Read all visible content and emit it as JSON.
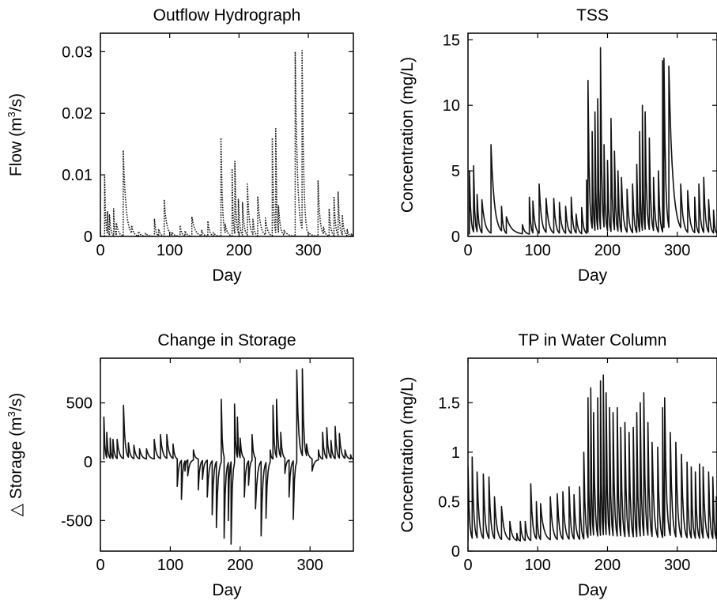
{
  "chart_data": [
    {
      "type": "line",
      "title": "Outflow Hydrograph",
      "xlabel": "Day",
      "ylabel_prefix": "Flow (m",
      "ylabel_sup": "3",
      "ylabel_suffix": "/s)",
      "xlim": [
        0,
        365
      ],
      "ylim": [
        0,
        0.033
      ],
      "xticks": [
        0,
        100,
        200,
        300
      ],
      "yticks": [
        0,
        0.01,
        0.02,
        0.03
      ],
      "ytick_labels": [
        "0",
        "0.01",
        "0.02",
        "0.03"
      ],
      "line_style": "dotted",
      "base": 0,
      "events": [
        [
          6,
          0.01
        ],
        [
          10,
          0.004
        ],
        [
          13,
          0.0035
        ],
        [
          19,
          0.0045
        ],
        [
          23,
          0.0022
        ],
        [
          33,
          0.014
        ],
        [
          45,
          0.0018
        ],
        [
          55,
          0.0008
        ],
        [
          65,
          0.0005
        ],
        [
          78,
          0.0028
        ],
        [
          84,
          0.0012
        ],
        [
          92,
          0.006
        ],
        [
          103,
          0.0007
        ],
        [
          115,
          0.0018
        ],
        [
          122,
          0.0009
        ],
        [
          132,
          0.0032
        ],
        [
          146,
          0.001
        ],
        [
          155,
          0.0025
        ],
        [
          163,
          0.0006
        ],
        [
          174,
          0.016
        ],
        [
          180,
          0.002
        ],
        [
          190,
          0.011
        ],
        [
          194,
          0.0122
        ],
        [
          199,
          0.006
        ],
        [
          205,
          0.0055
        ],
        [
          212,
          0.0085
        ],
        [
          220,
          0.0028
        ],
        [
          227,
          0.0065
        ],
        [
          238,
          0.003
        ],
        [
          248,
          0.016
        ],
        [
          253,
          0.0175
        ],
        [
          257,
          0.005
        ],
        [
          265,
          0.001
        ],
        [
          281,
          0.03
        ],
        [
          291,
          0.0302
        ],
        [
          298,
          0.001
        ],
        [
          314,
          0.009
        ],
        [
          322,
          0.0015
        ],
        [
          330,
          0.0045
        ],
        [
          337,
          0.0065
        ],
        [
          343,
          0.0072
        ],
        [
          349,
          0.0035
        ],
        [
          356,
          0.0012
        ],
        [
          362,
          0.0005
        ]
      ]
    },
    {
      "type": "line",
      "title": "TSS",
      "xlabel": "Day",
      "ylabel": "Concentration (mg/L)",
      "xlim": [
        0,
        357
      ],
      "ylim": [
        0,
        15.5
      ],
      "xticks": [
        0,
        100,
        200,
        300
      ],
      "yticks": [
        0,
        5,
        10,
        15
      ],
      "ytick_labels": [
        "0",
        "5",
        "10",
        "15"
      ],
      "line_style": "solid",
      "base": 0.15,
      "events": [
        [
          2,
          5.0
        ],
        [
          8,
          5.4
        ],
        [
          13,
          3.2
        ],
        [
          20,
          2.8
        ],
        [
          33,
          7.0
        ],
        [
          48,
          2.3
        ],
        [
          55,
          1.5
        ],
        [
          78,
          0.9
        ],
        [
          88,
          3.0
        ],
        [
          93,
          2.7
        ],
        [
          102,
          4.0
        ],
        [
          112,
          2.9
        ],
        [
          123,
          2.9
        ],
        [
          131,
          2.6
        ],
        [
          140,
          2.3
        ],
        [
          148,
          3.0
        ],
        [
          155,
          1.7
        ],
        [
          163,
          2.2
        ],
        [
          170,
          4.3
        ],
        [
          172,
          11.9
        ],
        [
          178,
          8.0
        ],
        [
          182,
          9.5
        ],
        [
          186,
          10.5
        ],
        [
          190,
          14.4
        ],
        [
          195,
          7.0
        ],
        [
          200,
          5.8
        ],
        [
          205,
          9.0
        ],
        [
          210,
          6.5
        ],
        [
          215,
          5.0
        ],
        [
          220,
          4.5
        ],
        [
          228,
          3.6
        ],
        [
          236,
          4.0
        ],
        [
          242,
          5.5
        ],
        [
          246,
          8.0
        ],
        [
          250,
          10.0
        ],
        [
          254,
          9.5
        ],
        [
          260,
          7.5
        ],
        [
          266,
          4.5
        ],
        [
          273,
          5.0
        ],
        [
          279,
          13.4
        ],
        [
          281,
          13.6
        ],
        [
          288,
          13.0
        ],
        [
          305,
          4.0
        ],
        [
          315,
          3.5
        ],
        [
          325,
          3.0
        ],
        [
          331,
          4.0
        ],
        [
          338,
          4.5
        ],
        [
          345,
          2.8
        ],
        [
          352,
          2.0
        ]
      ]
    },
    {
      "type": "line",
      "title": "Change in Storage",
      "xlabel": "Day",
      "ylabel_prefix": "△ Storage (m",
      "ylabel_sup": "3",
      "ylabel_suffix": "/s)",
      "xlim": [
        0,
        362
      ],
      "ylim": [
        -760,
        880
      ],
      "xticks": [
        0,
        100,
        200,
        300
      ],
      "yticks": [
        -500,
        0,
        500
      ],
      "ytick_labels": [
        "-500",
        "0",
        "500"
      ],
      "line_style": "solid",
      "base": 20,
      "events": [
        [
          5,
          380
        ],
        [
          9,
          250
        ],
        [
          14,
          200
        ],
        [
          18,
          190
        ],
        [
          24,
          190
        ],
        [
          33,
          480
        ],
        [
          40,
          160
        ],
        [
          48,
          140
        ],
        [
          56,
          110
        ],
        [
          66,
          110
        ],
        [
          77,
          190
        ],
        [
          86,
          230
        ],
        [
          95,
          230
        ],
        [
          104,
          150
        ],
        [
          110,
          -210
        ],
        [
          116,
          -320
        ],
        [
          121,
          -80
        ],
        [
          125,
          -120
        ],
        [
          133,
          100
        ],
        [
          140,
          -240
        ],
        [
          146,
          -150
        ],
        [
          153,
          -300
        ],
        [
          160,
          -450
        ],
        [
          166,
          -560
        ],
        [
          173,
          530
        ],
        [
          177,
          -650
        ],
        [
          183,
          -500
        ],
        [
          187,
          -700
        ],
        [
          192,
          490
        ],
        [
          196,
          380
        ],
        [
          200,
          200
        ],
        [
          206,
          -300
        ],
        [
          212,
          -200
        ],
        [
          217,
          230
        ],
        [
          222,
          -400
        ],
        [
          230,
          -630
        ],
        [
          237,
          -480
        ],
        [
          243,
          100
        ],
        [
          247,
          480
        ],
        [
          252,
          530
        ],
        [
          258,
          250
        ],
        [
          264,
          -100
        ],
        [
          270,
          -300
        ],
        [
          276,
          -490
        ],
        [
          281,
          780
        ],
        [
          289,
          790
        ],
        [
          295,
          150
        ],
        [
          303,
          -80
        ],
        [
          312,
          100
        ],
        [
          318,
          250
        ],
        [
          324,
          290
        ],
        [
          330,
          180
        ],
        [
          336,
          300
        ],
        [
          342,
          240
        ],
        [
          350,
          100
        ],
        [
          358,
          60
        ]
      ]
    },
    {
      "type": "line",
      "title": "TP in Water Column",
      "xlabel": "Day",
      "ylabel": "Concentration (mg/L)",
      "xlim": [
        0,
        357
      ],
      "ylim": [
        0,
        1.95
      ],
      "xticks": [
        0,
        100,
        200,
        300
      ],
      "yticks": [
        0,
        0.5,
        1,
        1.5
      ],
      "ytick_labels": [
        "0",
        "0.5",
        "1",
        "1.5"
      ],
      "line_style": "solid",
      "base": 0.1,
      "events": [
        [
          0,
          0.85
        ],
        [
          6,
          0.95
        ],
        [
          13,
          0.8
        ],
        [
          22,
          0.78
        ],
        [
          30,
          0.75
        ],
        [
          38,
          0.55
        ],
        [
          48,
          0.45
        ],
        [
          60,
          0.3
        ],
        [
          70,
          0.18
        ],
        [
          75,
          0.3
        ],
        [
          82,
          0.3
        ],
        [
          90,
          0.68
        ],
        [
          98,
          0.5
        ],
        [
          104,
          0.48
        ],
        [
          118,
          0.55
        ],
        [
          128,
          0.58
        ],
        [
          136,
          0.6
        ],
        [
          145,
          0.65
        ],
        [
          152,
          0.57
        ],
        [
          160,
          0.65
        ],
        [
          166,
          1.0
        ],
        [
          172,
          1.55
        ],
        [
          176,
          1.65
        ],
        [
          180,
          1.4
        ],
        [
          186,
          1.55
        ],
        [
          190,
          1.72
        ],
        [
          194,
          1.78
        ],
        [
          198,
          1.6
        ],
        [
          203,
          1.45
        ],
        [
          208,
          1.4
        ],
        [
          214,
          1.45
        ],
        [
          219,
          1.25
        ],
        [
          225,
          1.3
        ],
        [
          231,
          1.2
        ],
        [
          237,
          1.25
        ],
        [
          242,
          1.4
        ],
        [
          247,
          1.5
        ],
        [
          252,
          1.6
        ],
        [
          258,
          1.3
        ],
        [
          264,
          1.1
        ],
        [
          272,
          1.05
        ],
        [
          279,
          1.45
        ],
        [
          282,
          1.55
        ],
        [
          290,
          1.2
        ],
        [
          298,
          1.1
        ],
        [
          306,
          0.98
        ],
        [
          314,
          0.9
        ],
        [
          320,
          0.85
        ],
        [
          326,
          0.8
        ],
        [
          332,
          0.88
        ],
        [
          337,
          0.85
        ],
        [
          345,
          0.8
        ],
        [
          351,
          0.75
        ],
        [
          356,
          0.55
        ]
      ]
    }
  ]
}
